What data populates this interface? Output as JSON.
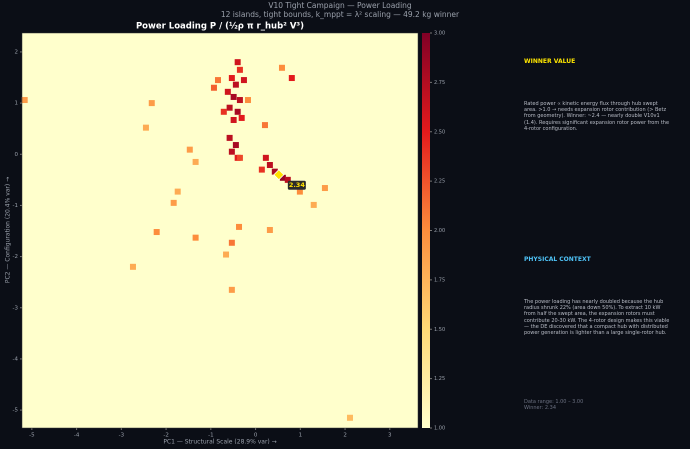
{
  "header": {
    "title": "V10 Tight Campaign — Power Loading",
    "subtitle": "12 islands, tight bounds, k_mppt = λ² scaling — 49.2 kg winner"
  },
  "chart_data": {
    "type": "heatmap",
    "title": "Power Loading  P / (½ρ π r_hub² V³)",
    "x_label": "PC1 — Structural Scale (28.9% var) →",
    "y_label": "PC2 — Configuration (20.4% var) →",
    "xlim": [
      -5.22,
      3.63
    ],
    "ylim": [
      -5.35,
      2.37
    ],
    "xticks": [
      -5,
      -4,
      -3,
      -2,
      -1,
      0,
      1,
      2,
      3
    ],
    "yticks": [
      -5,
      -4,
      -3,
      -2,
      -1,
      0,
      1,
      2
    ],
    "background": "#ffffcc",
    "colorscale": [
      "#ffffcc",
      "#fed976",
      "#fd8d3c",
      "#e31a1c",
      "#800026"
    ],
    "clim": [
      1,
      3
    ],
    "cticks": [
      {
        "value": 1,
        "label": "1.00"
      },
      {
        "value": 1.25,
        "label": "1.25"
      },
      {
        "value": 1.5,
        "label": "1.50"
      },
      {
        "value": 1.75,
        "label": "1.75"
      },
      {
        "value": 2,
        "label": "2.00"
      },
      {
        "value": 2.25,
        "label": "2.25"
      },
      {
        "value": 2.5,
        "label": "2.50"
      },
      {
        "value": 2.75,
        "label": "2.75"
      },
      {
        "value": 3,
        "label": "3.00"
      }
    ],
    "x": [
      -0.4,
      -0.35,
      -0.53,
      -0.44,
      -0.26,
      -0.62,
      -0.49,
      -0.35,
      -0.58,
      -0.4,
      -0.49,
      -0.31,
      -0.58,
      -0.44,
      -0.53,
      -0.4,
      -0.71,
      -0.93,
      -0.84,
      -0.17,
      0.23,
      0.32,
      0.43,
      0.61,
      0.72,
      0.14,
      0.81,
      0.59,
      0.21,
      0.99,
      1.55,
      1.3,
      -1.74,
      -1.83,
      -2.21,
      -2.74,
      -0.53,
      -1.34,
      -0.66,
      -0.37,
      -1.47,
      -1.34,
      -2.45,
      -2.32,
      -5.16,
      0.32,
      -0.53,
      2.11,
      -0.35
    ],
    "y": [
      1.8,
      1.65,
      1.49,
      1.36,
      1.45,
      1.22,
      1.12,
      1.06,
      0.91,
      0.83,
      0.67,
      0.71,
      0.32,
      0.18,
      0.05,
      -0.07,
      0.83,
      1.3,
      1.45,
      1.06,
      -0.07,
      -0.21,
      -0.34,
      -0.46,
      -0.5,
      -0.3,
      1.49,
      1.69,
      0.57,
      -0.73,
      -0.66,
      -0.99,
      -0.73,
      -0.95,
      -1.52,
      -2.2,
      -1.73,
      -1.63,
      -1.96,
      -1.42,
      0.09,
      -0.15,
      0.52,
      1.0,
      1.06,
      -1.48,
      -2.65,
      -5.15,
      -0.07
    ],
    "values": [
      2.6,
      2.4,
      2.5,
      2.7,
      2.6,
      2.6,
      2.8,
      2.7,
      2.7,
      2.8,
      2.6,
      2.5,
      2.7,
      2.8,
      2.7,
      2.5,
      2.4,
      2.2,
      2.1,
      2.0,
      2.6,
      2.7,
      2.8,
      2.9,
      2.7,
      2.4,
      2.5,
      2.0,
      2.1,
      2.0,
      1.9,
      1.8,
      1.8,
      1.9,
      2.0,
      1.8,
      2.1,
      2.0,
      1.8,
      2.0,
      1.9,
      1.8,
      1.8,
      1.9,
      1.9,
      1.9,
      1.9,
      1.7,
      2.3
    ],
    "winner": {
      "x": 0.52,
      "y": -0.4,
      "value": 2.34,
      "color": "#ffe000"
    }
  },
  "panel": {
    "winner_heading": "WINNER VALUE",
    "winner_text": "Rated power ∝ kinetic energy flux through hub swept area. >1.0 → needs expansion rotor contribution (> Betz from geometry). Winner: ~2.4 — nearly double V10v1 (1.4). Requires significant expansion rotor power from the 4-rotor configuration.",
    "context_heading": "PHYSICAL CONTEXT",
    "context_text": "The power loading has nearly doubled because the hub radius shrunk 22% (area down 50%). To extract 10 kW from half the swept area, the expansion rotors must contribute 20-30 kW. The 4-rotor design makes this viable — the DE discovered that a compact hub with distributed power generation is lighter than a large single-rotor hub.",
    "range_note": "Data range: 1.00 – 3.00",
    "winner_note": "Winner: 2.34"
  }
}
